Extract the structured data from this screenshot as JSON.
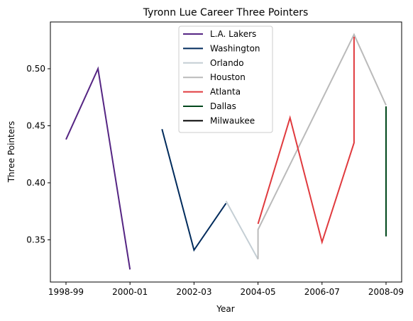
{
  "chart_data": {
    "type": "line",
    "title": "Tyronn Lue Career Three Pointers",
    "xlabel": "Year",
    "ylabel": "Three Pointers",
    "x_categories": [
      "1998-99",
      "1999-00",
      "2000-01",
      "2001-02",
      "2002-03",
      "2003-04",
      "2004-05",
      "2005-06",
      "2006-07",
      "2007-08",
      "2008-09"
    ],
    "x_tick_labels": [
      "1998-99",
      "2000-01",
      "2002-03",
      "2004-05",
      "2006-07",
      "2008-09"
    ],
    "y_ticks": [
      0.35,
      0.4,
      0.45,
      0.5
    ],
    "y_tick_labels": [
      "0.35",
      "0.40",
      "0.45",
      "0.50"
    ],
    "ylim": [
      0.313,
      0.541
    ],
    "grid": false,
    "legend_position": "top-center",
    "series": [
      {
        "name": "L.A. Lakers",
        "color": "#552583",
        "points": [
          [
            "1998-99",
            0.438
          ],
          [
            "1999-00",
            0.5
          ],
          [
            "2000-01",
            0.324
          ]
        ]
      },
      {
        "name": "Washington",
        "color": "#002b5c",
        "points": [
          [
            "2001-02",
            0.447
          ],
          [
            "2002-03",
            0.341
          ],
          [
            "2003-04",
            0.382
          ]
        ]
      },
      {
        "name": "Orlando",
        "color": "#c4ced4",
        "points": [
          [
            "2003-04",
            0.384
          ],
          [
            "2004-05",
            0.333
          ]
        ]
      },
      {
        "name": "Houston",
        "color": "#bababa",
        "points": [
          [
            "2004-05",
            0.333
          ],
          [
            "2004-05",
            0.359
          ],
          [
            "2007-08",
            0.53
          ],
          [
            "2008-09",
            0.468
          ]
        ]
      },
      {
        "name": "Atlanta",
        "color": "#e03a3e",
        "points": [
          [
            "2004-05",
            0.364
          ],
          [
            "2005-06",
            0.457
          ],
          [
            "2006-07",
            0.348
          ],
          [
            "2007-08",
            0.435
          ],
          [
            "2007-08",
            0.528
          ]
        ]
      },
      {
        "name": "Dallas",
        "color": "#00471b",
        "points": [
          [
            "2008-09",
            0.467
          ],
          [
            "2008-09",
            0.353
          ]
        ]
      },
      {
        "name": "Milwaukee",
        "color": "#000000",
        "points": []
      }
    ]
  }
}
